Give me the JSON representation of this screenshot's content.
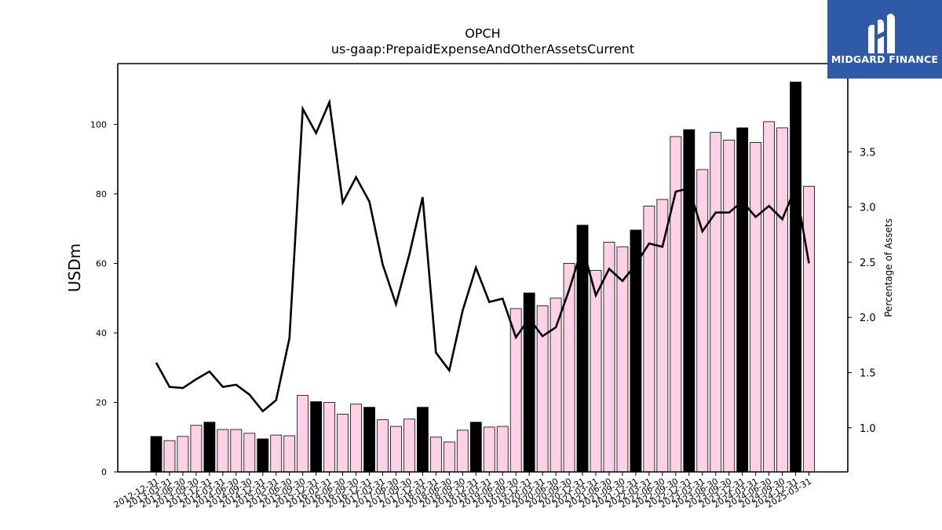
{
  "chart_data": {
    "type": "bar",
    "title": "OPCH",
    "subtitle": "us-gaap:PrepaidExpenseAndOtherAssetsCurrent",
    "ylabel": "USDm",
    "y2label": "Percentage of Assets",
    "ylim": [
      0,
      117.5
    ],
    "y2lim": [
      0.6,
      4.3
    ],
    "yticks": [
      0,
      20,
      40,
      60,
      80,
      100
    ],
    "y2ticks": [
      1.0,
      1.5,
      2.0,
      2.5,
      3.0,
      3.5
    ],
    "categories": [
      "2012-12-31",
      "2013-03-31",
      "2013-06-30",
      "2013-09-30",
      "2013-12-31",
      "2014-03-31",
      "2014-06-30",
      "2014-09-30",
      "2014-12-31",
      "2015-03-31",
      "2015-06-30",
      "2015-09-30",
      "2015-12-31",
      "2016-03-31",
      "2016-06-30",
      "2016-09-30",
      "2016-12-31",
      "2017-03-31",
      "2017-06-30",
      "2017-09-30",
      "2017-12-31",
      "2018-03-31",
      "2018-06-30",
      "2018-09-30",
      "2018-12-31",
      "2019-03-31",
      "2019-06-30",
      "2019-09-30",
      "2019-12-31",
      "2020-03-31",
      "2020-06-30",
      "2020-09-30",
      "2020-12-31",
      "2021-03-31",
      "2021-06-30",
      "2021-09-30",
      "2021-12-31",
      "2022-03-31",
      "2022-06-30",
      "2022-09-30",
      "2022-12-31",
      "2023-03-31",
      "2023-06-30",
      "2023-09-30",
      "2023-12-31",
      "2024-03-31",
      "2024-06-30",
      "2024-09-30",
      "2024-12-31",
      "2025-03-31"
    ],
    "series": [
      {
        "type": "bar",
        "values": [
          10.2,
          9.0,
          10.2,
          13.4,
          14.3,
          12.2,
          12.2,
          11.1,
          9.5,
          10.6,
          10.4,
          22.0,
          20.2,
          20.0,
          16.6,
          19.5,
          18.6,
          15.0,
          13.1,
          15.2,
          18.6,
          10.0,
          8.6,
          12.0,
          14.3,
          12.9,
          13.1,
          47.0,
          51.5,
          47.8,
          50.0,
          60.0,
          71.0,
          58.0,
          66.1,
          64.8,
          69.6,
          76.5,
          78.4,
          96.5,
          98.5,
          87.0,
          97.7,
          95.5,
          99.0,
          94.8,
          100.8,
          99.0,
          112.2,
          82.2
        ],
        "highlight": [
          true,
          false,
          false,
          false,
          true,
          false,
          false,
          false,
          true,
          false,
          false,
          false,
          true,
          false,
          false,
          false,
          true,
          false,
          false,
          false,
          true,
          false,
          false,
          false,
          true,
          false,
          false,
          false,
          true,
          false,
          false,
          false,
          true,
          false,
          false,
          false,
          true,
          false,
          false,
          false,
          true,
          false,
          false,
          false,
          true,
          false,
          false,
          false,
          true,
          false
        ]
      },
      {
        "type": "line",
        "axis": "right",
        "values": [
          1.59,
          1.37,
          1.36,
          1.44,
          1.51,
          1.37,
          1.39,
          1.3,
          1.15,
          1.25,
          1.81,
          3.89,
          3.67,
          3.95,
          3.04,
          3.27,
          3.05,
          2.48,
          2.12,
          2.57,
          3.09,
          1.68,
          1.52,
          2.06,
          2.45,
          2.14,
          2.17,
          1.82,
          1.99,
          1.83,
          1.91,
          2.25,
          2.64,
          2.2,
          2.44,
          2.33,
          2.48,
          2.67,
          2.64,
          3.14,
          3.17,
          2.78,
          2.95,
          2.95,
          3.05,
          2.91,
          3.01,
          2.89,
          3.18,
          2.49
        ]
      }
    ],
    "colors": {
      "bar": "#ffd1e6",
      "highlight": "#000000",
      "line": "#000000"
    }
  },
  "logo": {
    "text": "MIDGARD FINANCE"
  }
}
